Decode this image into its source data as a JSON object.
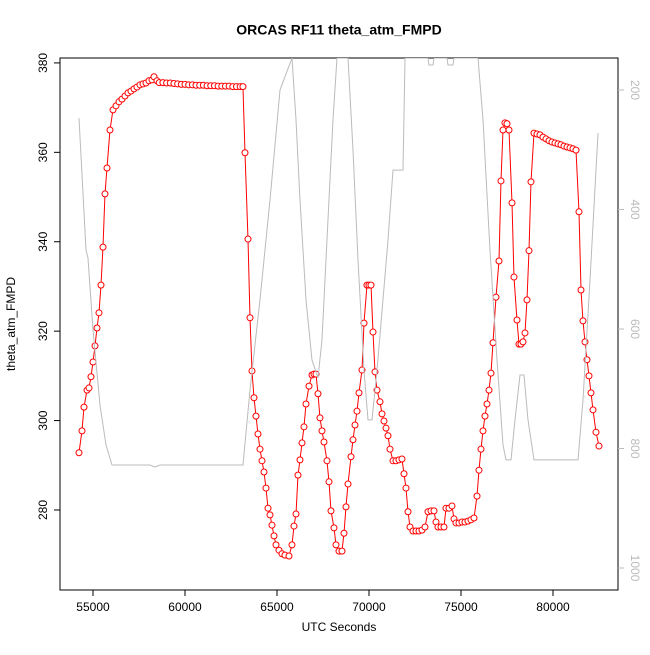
{
  "chart_data": {
    "type": "line",
    "title": "ORCAS RF11 theta_atm_FMPD",
    "x_label": "UTC Seconds",
    "y_label": "theta_atm_FMPD",
    "xlim": [
      53207,
      83533
    ],
    "xticks": [
      55000,
      60000,
      65000,
      70000,
      75000,
      80000
    ],
    "ylim": [
      262.1,
      381.1
    ],
    "yticks": [
      280,
      300,
      320,
      340,
      360,
      380
    ],
    "y2lim": [
      1036.8,
      146.4
    ],
    "y2ticks": [
      200,
      400,
      600,
      800,
      1000
    ],
    "y2_color": "#bbbbbb",
    "series": [
      {
        "color": "#ff0000",
        "markers": true,
        "x": [
          54239,
          54402,
          54511,
          54674,
          54783,
          54891,
          55000,
          55109,
          55217,
          55326,
          55435,
          55543,
          55652,
          55761,
          55924,
          56087,
          56250,
          56413,
          56576,
          56739,
          56902,
          57065,
          57228,
          57391,
          57554,
          57717,
          57880,
          58043,
          58207,
          58315,
          58478,
          58600,
          58800,
          59000,
          59200,
          59400,
          59600,
          59800,
          60000,
          60200,
          60400,
          60600,
          60800,
          61000,
          61200,
          61400,
          61600,
          61800,
          62000,
          62200,
          62400,
          62600,
          62800,
          63000,
          63150,
          63261,
          63424,
          63533,
          63641,
          63750,
          63859,
          63967,
          64076,
          64185,
          64293,
          64402,
          64511,
          64620,
          64728,
          64837,
          64946,
          65109,
          65272,
          65435,
          65652,
          65815,
          65924,
          66033,
          66141,
          66250,
          66359,
          66467,
          66576,
          66739,
          66902,
          67011,
          67120,
          67228,
          67337,
          67446,
          67554,
          67717,
          67826,
          67935,
          68098,
          68207,
          68370,
          68533,
          68641,
          68750,
          68859,
          69022,
          69130,
          69239,
          69348,
          69457,
          69620,
          69728,
          69891,
          70000,
          70109,
          70217,
          70326,
          70435,
          70598,
          70707,
          70815,
          70924,
          71033,
          71141,
          71304,
          71467,
          71630,
          71793,
          71902,
          72011,
          72120,
          72228,
          72391,
          72554,
          72717,
          72880,
          73043,
          73207,
          73370,
          73533,
          73641,
          73750,
          73913,
          74076,
          74185,
          74348,
          74511,
          74620,
          74728,
          74891,
          75054,
          75217,
          75380,
          75543,
          75707,
          75870,
          75978,
          76087,
          76196,
          76304,
          76413,
          76522,
          76630,
          76739,
          76902,
          77065,
          77174,
          77283,
          77391,
          77500,
          77609,
          77772,
          77880,
          78043,
          78152,
          78261,
          78370,
          78478,
          78587,
          78696,
          78804,
          78967,
          79130,
          79293,
          79457,
          79620,
          79783,
          79946,
          80109,
          80272,
          80435,
          80598,
          80761,
          80924,
          81087,
          81250,
          81413,
          81522,
          81630,
          81739,
          81848,
          81957,
          82065,
          82174,
          82337,
          82500
        ],
        "values": [
          292.8,
          297.7,
          303.0,
          306.8,
          307.3,
          309.8,
          313.1,
          316.7,
          320.7,
          324.1,
          330.3,
          338.8,
          350.7,
          356.5,
          365.0,
          369.5,
          370.4,
          371.3,
          371.9,
          372.6,
          373.3,
          373.7,
          374.2,
          374.6,
          375.1,
          375.3,
          375.5,
          376.0,
          376.2,
          376.9,
          376.0,
          375.6,
          375.6,
          375.5,
          375.5,
          375.4,
          375.3,
          375.2,
          375.2,
          375.1,
          375.1,
          375.0,
          375.0,
          375.0,
          374.9,
          374.9,
          374.9,
          374.8,
          374.8,
          374.8,
          374.8,
          374.7,
          374.7,
          374.7,
          374.7,
          359.9,
          340.6,
          323.0,
          311.1,
          305.1,
          301.0,
          297.0,
          293.6,
          291.0,
          288.5,
          284.9,
          280.4,
          278.9,
          276.6,
          274.2,
          272.2,
          271.0,
          270.2,
          269.9,
          269.7,
          272.2,
          276.4,
          279.1,
          287.8,
          291.2,
          295.0,
          298.6,
          303.7,
          307.7,
          310.2,
          310.4,
          310.4,
          306.0,
          300.6,
          297.7,
          295.2,
          291.0,
          286.3,
          279.8,
          276.0,
          272.2,
          270.8,
          270.8,
          274.8,
          280.7,
          285.8,
          291.9,
          295.7,
          299.0,
          302.1,
          306.2,
          311.3,
          321.8,
          330.3,
          330.3,
          330.3,
          319.8,
          310.9,
          306.8,
          304.2,
          301.5,
          299.9,
          298.3,
          296.6,
          293.6,
          291.0,
          291.0,
          291.2,
          291.4,
          288.1,
          284.9,
          279.6,
          276.2,
          275.3,
          275.3,
          275.3,
          275.5,
          276.2,
          279.6,
          279.8,
          279.8,
          277.3,
          276.2,
          276.2,
          276.2,
          280.4,
          280.4,
          280.9,
          278.0,
          277.1,
          277.1,
          277.3,
          277.3,
          277.5,
          277.8,
          278.2,
          283.1,
          288.9,
          293.6,
          297.7,
          301.0,
          303.7,
          306.8,
          310.6,
          317.4,
          327.6,
          335.7,
          353.6,
          365.0,
          366.6,
          366.4,
          365.0,
          348.7,
          332.1,
          322.5,
          317.1,
          317.1,
          317.6,
          319.6,
          327.0,
          338.0,
          353.4,
          364.3,
          364.1,
          363.9,
          363.4,
          363.0,
          362.6,
          362.3,
          362.1,
          361.9,
          361.7,
          361.4,
          361.2,
          361.0,
          360.8,
          360.5,
          346.7,
          329.2,
          322.3,
          317.6,
          313.6,
          310.0,
          306.2,
          302.4,
          297.4,
          294.3
        ]
      },
      {
        "color": "#bbbbbb",
        "axis": "y2",
        "markers": false,
        "x": [
          54239,
          54620,
          54728,
          55000,
          55380,
          55707,
          56033,
          58098,
          58370,
          58641,
          63152,
          63533,
          64076,
          64620,
          65163,
          65815,
          66033,
          66250,
          66576,
          66902,
          67228,
          67446,
          67717,
          68043,
          68261,
          68859,
          69130,
          69402,
          69728,
          69946,
          70163,
          70435,
          70761,
          71033,
          71304,
          71848,
          71957,
          73207,
          73261,
          73478,
          73533,
          74239,
          74293,
          74565,
          74620,
          75924,
          76196,
          76576,
          76957,
          77283,
          77446,
          77717,
          77935,
          78207,
          78424,
          78641,
          78967,
          81359,
          81630,
          82011,
          82446
        ],
        "values": [
          246.9,
          467.8,
          481.2,
          601.7,
          727,
          794,
          827.6,
          827.6,
          831,
          827.6,
          827.6,
          702,
          551,
          384,
          200,
          146.4,
          250,
          384,
          551,
          652,
          682,
          618,
          451,
          250,
          146.4,
          146.4,
          300,
          484.5,
          669,
          752,
          752,
          669,
          551,
          451,
          334,
          334,
          146.4,
          146.4,
          158.2,
          158.2,
          146.4,
          146.4,
          158.2,
          158.2,
          146.4,
          146.4,
          250,
          468,
          652,
          794,
          819,
          819,
          752,
          677,
          677,
          752,
          819,
          819,
          719,
          518,
          272
        ]
      }
    ]
  }
}
